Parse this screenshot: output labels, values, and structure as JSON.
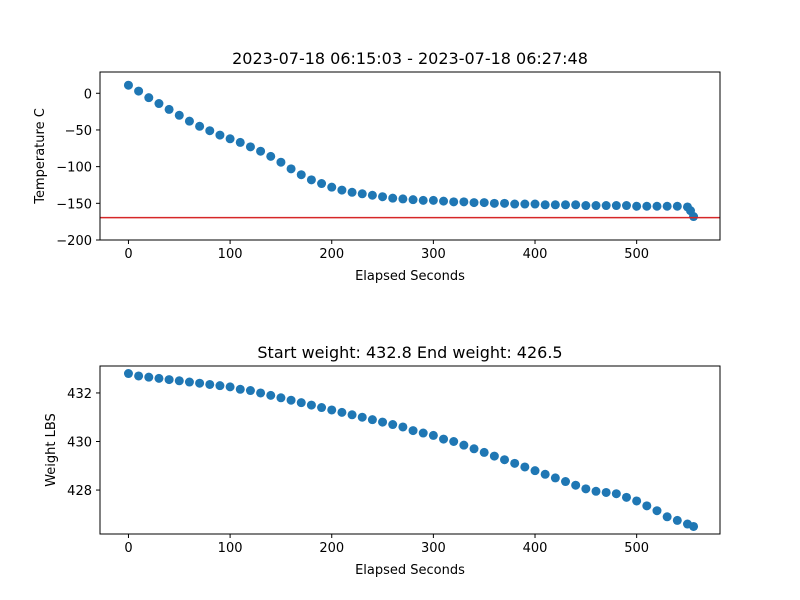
{
  "colors": {
    "points": "#1f77b4",
    "reference_line": "#d62728",
    "axes": "#000000"
  },
  "chart_data": [
    {
      "type": "scatter",
      "title": "2023-07-18 06:15:03 - 2023-07-18 06:27:48",
      "xlabel": "Elapsed Seconds",
      "ylabel": "Temperature C",
      "xlim": [
        -28,
        582
      ],
      "ylim": [
        -200,
        29
      ],
      "xticks": [
        0,
        100,
        200,
        300,
        400,
        500
      ],
      "yticks": [
        0,
        -50,
        -100,
        -150,
        -200
      ],
      "xtick_labels": [
        "0",
        "100",
        "200",
        "300",
        "400",
        "500"
      ],
      "ytick_labels": [
        "0",
        "−50",
        "−100",
        "−150",
        "−200"
      ],
      "grid": false,
      "reference_line_y": -169.5,
      "series": [
        {
          "x": [
            0,
            10,
            20,
            30,
            40,
            50,
            60,
            70,
            80,
            90,
            100,
            110,
            120,
            130,
            140,
            150,
            160,
            170,
            180,
            190,
            200,
            210,
            220,
            230,
            240,
            250,
            260,
            270,
            280,
            290,
            300,
            310,
            320,
            330,
            340,
            350,
            360,
            370,
            380,
            390,
            400,
            410,
            420,
            430,
            440,
            450,
            460,
            470,
            480,
            490,
            500,
            510,
            520,
            530,
            540,
            550,
            553,
            556
          ],
          "y": [
            11,
            3,
            -6,
            -14,
            -22,
            -30,
            -38,
            -45,
            -51,
            -57,
            -62,
            -67,
            -73,
            -79,
            -86,
            -94,
            -103,
            -111,
            -118,
            -123,
            -128,
            -132,
            -135,
            -137,
            -139,
            -141,
            -143,
            -144,
            -145,
            -146,
            -146,
            -147,
            -148,
            -148,
            -149,
            -149,
            -150,
            -150,
            -151,
            -151,
            -151,
            -152,
            -152,
            -152,
            -152,
            -153,
            -153,
            -153,
            -153,
            -153,
            -154,
            -154,
            -154,
            -154,
            -154,
            -155,
            -160,
            -168
          ]
        }
      ]
    },
    {
      "type": "scatter",
      "title": "Start weight: 432.8 End weight: 426.5",
      "xlabel": "Elapsed Seconds",
      "ylabel": "Weight LBS",
      "xlim": [
        -28,
        582
      ],
      "ylim": [
        426.19,
        433.11
      ],
      "xticks": [
        0,
        100,
        200,
        300,
        400,
        500
      ],
      "yticks": [
        428,
        430,
        432
      ],
      "xtick_labels": [
        "0",
        "100",
        "200",
        "300",
        "400",
        "500"
      ],
      "ytick_labels": [
        "428",
        "430",
        "432"
      ],
      "grid": false,
      "series": [
        {
          "x": [
            0,
            10,
            20,
            30,
            40,
            50,
            60,
            70,
            80,
            90,
            100,
            110,
            120,
            130,
            140,
            150,
            160,
            170,
            180,
            190,
            200,
            210,
            220,
            230,
            240,
            250,
            260,
            270,
            280,
            290,
            300,
            310,
            320,
            330,
            340,
            350,
            360,
            370,
            380,
            390,
            400,
            410,
            420,
            430,
            440,
            450,
            460,
            470,
            480,
            490,
            500,
            510,
            520,
            530,
            540,
            550,
            556
          ],
          "y": [
            432.8,
            432.7,
            432.65,
            432.6,
            432.55,
            432.5,
            432.45,
            432.4,
            432.35,
            432.3,
            432.25,
            432.15,
            432.1,
            432.0,
            431.9,
            431.8,
            431.7,
            431.6,
            431.5,
            431.4,
            431.3,
            431.2,
            431.1,
            431.0,
            430.9,
            430.8,
            430.7,
            430.6,
            430.45,
            430.35,
            430.25,
            430.1,
            430.0,
            429.85,
            429.7,
            429.55,
            429.4,
            429.25,
            429.1,
            428.95,
            428.8,
            428.65,
            428.5,
            428.35,
            428.2,
            428.05,
            427.95,
            427.9,
            427.85,
            427.7,
            427.55,
            427.35,
            427.15,
            426.9,
            426.75,
            426.6,
            426.5
          ]
        }
      ]
    }
  ]
}
